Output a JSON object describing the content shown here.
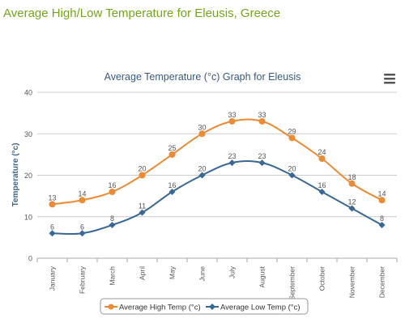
{
  "page": {
    "heading": "Average High/Low Temperature for Eleusis, Greece"
  },
  "chart_data": {
    "type": "line",
    "title": "Average Temperature (°c) Graph for Eleusis",
    "xlabel": "",
    "ylabel": "Temperature (°c)",
    "ylim": [
      0,
      40
    ],
    "yticks": [
      0,
      10,
      20,
      30,
      40
    ],
    "grid": true,
    "legend_position": "bottom-center",
    "categories": [
      "January",
      "February",
      "March",
      "April",
      "May",
      "June",
      "July",
      "August",
      "September",
      "October",
      "November",
      "December"
    ],
    "series": [
      {
        "name": "Average High Temp (°c)",
        "color": "#ed8b35",
        "marker": "circle",
        "values": [
          13,
          14,
          16,
          20,
          25,
          30,
          33,
          33,
          29,
          24,
          18,
          14
        ]
      },
      {
        "name": "Average Low Temp (°c)",
        "color": "#3a6896",
        "marker": "diamond",
        "values": [
          6,
          6,
          8,
          11,
          16,
          20,
          23,
          23,
          20,
          16,
          12,
          8
        ]
      }
    ]
  },
  "colors": {
    "heading": "#74a51d",
    "title": "#3a5a7c",
    "grid": "#cccccc",
    "axis_text": "#555555"
  },
  "icons": {
    "menu": "hamburger-menu-icon"
  }
}
